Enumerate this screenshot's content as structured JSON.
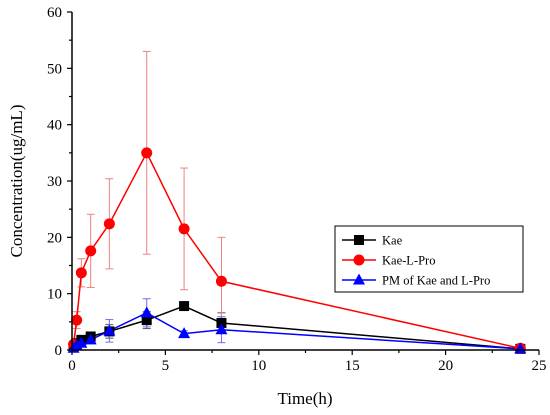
{
  "chart_data": {
    "type": "line",
    "xlabel": "Time(h)",
    "ylabel": "Concentration(ug/mL)",
    "xlim": [
      0,
      25
    ],
    "ylim": [
      0,
      60
    ],
    "xticks": [
      0,
      5,
      10,
      15,
      20,
      25
    ],
    "yticks": [
      0,
      10,
      20,
      30,
      40,
      50,
      60
    ],
    "grid": false,
    "legend_position": "right",
    "series": [
      {
        "name": "Kae",
        "color": "#000000",
        "marker": "square",
        "x": [
          0.083,
          0.25,
          0.5,
          1,
          2,
          4,
          6,
          8,
          24
        ],
        "y": [
          0.5,
          1.2,
          1.8,
          2.4,
          3.3,
          5.3,
          7.8,
          4.8,
          0.2
        ],
        "err": [
          0.3,
          0.4,
          0.5,
          0.7,
          1.2,
          1.5,
          0.6,
          1.8,
          0.1
        ]
      },
      {
        "name": "Kae-L-Pro",
        "color": "#ff0000",
        "marker": "circle",
        "x": [
          0.083,
          0.25,
          0.5,
          1,
          2,
          4,
          6,
          8,
          24
        ],
        "y": [
          1.0,
          5.3,
          13.7,
          17.6,
          22.4,
          35.0,
          21.5,
          12.2,
          0.3
        ],
        "err": [
          0.5,
          1.5,
          2.5,
          6.5,
          8.0,
          18.0,
          10.8,
          7.8,
          0.2
        ]
      },
      {
        "name": "PM of Kae and L-Pro",
        "color": "#0000ff",
        "marker": "triangle",
        "x": [
          0.083,
          0.25,
          0.5,
          1,
          2,
          4,
          6,
          8,
          24
        ],
        "y": [
          0.3,
          0.8,
          1.2,
          1.8,
          3.4,
          6.6,
          2.9,
          3.6,
          0.2
        ],
        "err": [
          0.2,
          0.4,
          0.5,
          0.7,
          2.0,
          2.5,
          0.5,
          2.3,
          0.1
        ]
      }
    ]
  }
}
